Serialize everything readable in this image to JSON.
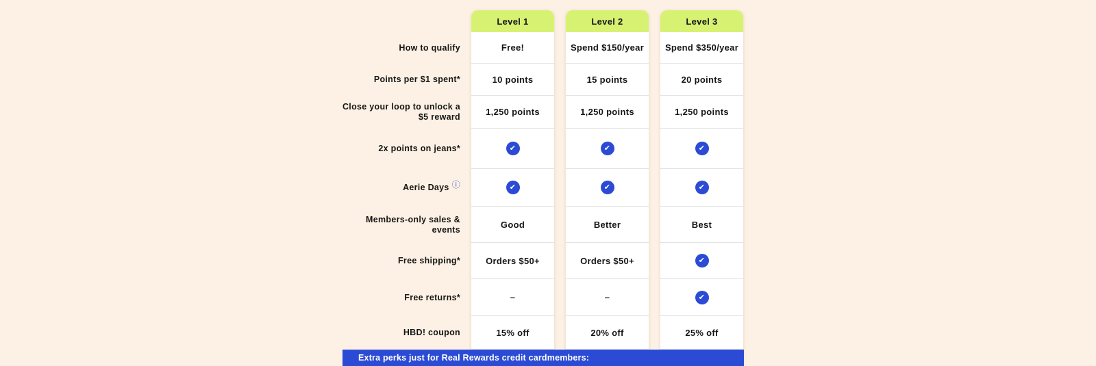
{
  "colors": {
    "bg": "#fcf1e4",
    "pill": "#d7f272",
    "accent": "#2c4bd4",
    "card": "#ffffff",
    "divider": "#e3e3e3",
    "text": "#161616"
  },
  "icons": {
    "check_icon": "✔",
    "info_icon": "ⓘ"
  },
  "table": {
    "columns": [
      {
        "header": "Level 1"
      },
      {
        "header": "Level 2"
      },
      {
        "header": "Level 3"
      }
    ],
    "rows": [
      {
        "label": "How to qualify",
        "cells": [
          {
            "type": "text",
            "value": "Free!"
          },
          {
            "type": "text",
            "value": "Spend $150/year"
          },
          {
            "type": "text",
            "value": "Spend $350/year"
          }
        ]
      },
      {
        "label": "Points per $1 spent*",
        "cells": [
          {
            "type": "text",
            "value": "10 points"
          },
          {
            "type": "text",
            "value": "15 points"
          },
          {
            "type": "text",
            "value": "20 points"
          }
        ]
      },
      {
        "label": "Close your loop to unlock a\n$5 reward",
        "cells": [
          {
            "type": "text",
            "value": "1,250 points"
          },
          {
            "type": "text",
            "value": "1,250 points"
          },
          {
            "type": "text",
            "value": "1,250 points"
          }
        ]
      },
      {
        "label": "2x points on jeans*",
        "cells": [
          {
            "type": "check"
          },
          {
            "type": "check"
          },
          {
            "type": "check"
          }
        ]
      },
      {
        "label": "Aerie Days",
        "has_info_icon": true,
        "cells": [
          {
            "type": "check"
          },
          {
            "type": "check"
          },
          {
            "type": "check"
          }
        ]
      },
      {
        "label": "Members-only sales &\nevents",
        "cells": [
          {
            "type": "text",
            "value": "Good"
          },
          {
            "type": "text",
            "value": "Better"
          },
          {
            "type": "text",
            "value": "Best"
          }
        ]
      },
      {
        "label": "Free shipping*",
        "cells": [
          {
            "type": "text",
            "value": "Orders $50+"
          },
          {
            "type": "text",
            "value": "Orders $50+"
          },
          {
            "type": "check"
          }
        ]
      },
      {
        "label": "Free returns*",
        "cells": [
          {
            "type": "text",
            "value": "–"
          },
          {
            "type": "text",
            "value": "–"
          },
          {
            "type": "check"
          }
        ]
      },
      {
        "label": "HBD! coupon",
        "cells": [
          {
            "type": "text",
            "value": "15% off"
          },
          {
            "type": "text",
            "value": "20% off"
          },
          {
            "type": "text",
            "value": "25% off"
          }
        ]
      }
    ]
  },
  "banner": {
    "text": "Extra perks just for Real Rewards credit cardmembers:"
  }
}
